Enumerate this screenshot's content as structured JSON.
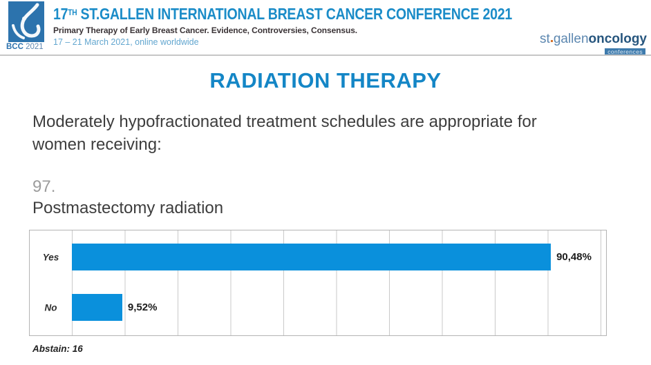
{
  "header": {
    "logo": {
      "bcc": "BCC",
      "year": "2021"
    },
    "title_num": "17",
    "title_sup": "TH",
    "title_rest": " ST.GALLEN INTERNATIONAL BREAST CANCER CONFERENCE 2021",
    "subtitle": "Primary Therapy of Early Breast Cancer. Evidence, Controversies, Consensus.",
    "dates": "17 – 21 March 2021, online worldwide",
    "stgallen": {
      "st": "st",
      "gallen": "gallen",
      "oncology": "oncology",
      "conferences": "conferences"
    }
  },
  "slide": {
    "title": "RADIATION THERAPY",
    "question_line1": "Moderately hypofractionated treatment schedules are appropriate for",
    "question_line2": "women receiving:",
    "number": "97.",
    "item": "Postmastectomy radiation",
    "abstain": "Abstain: 16"
  },
  "chart_data": {
    "type": "bar",
    "orientation": "horizontal",
    "title": "Postmastectomy radiation",
    "categories": [
      "Yes",
      "No"
    ],
    "values": [
      90.48,
      9.52
    ],
    "value_labels": [
      "90,48%",
      "9,52%"
    ],
    "xlim": [
      0,
      100
    ],
    "gridline_step_percent": 10,
    "grid": true,
    "legend": false,
    "abstain_count": 16,
    "bar_color": "#0a90dc"
  },
  "colors": {
    "header_title_blue": "#1b8cc8",
    "slide_title_blue": "#1486c6",
    "dates_blue": "#62a6cf",
    "logo_square_blue": "#2c73ad",
    "bar_blue": "#0a90dc",
    "subtitle_dark": "#3a3336",
    "body_text": "#3d3d3d",
    "question_number_gray": "#9c9c9c",
    "gridline_gray": "#c9c9c9"
  }
}
